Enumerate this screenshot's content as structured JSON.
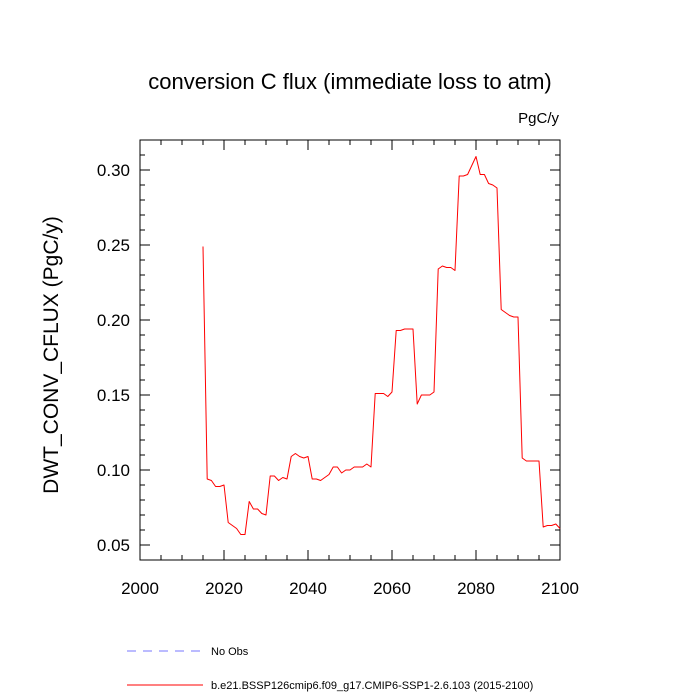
{
  "chart_data": {
    "type": "line",
    "title": "conversion C flux (immediate loss to atm)",
    "units": "PgC/y",
    "ylabel": "DWT_CONV_CFLUX  (PgC/y)",
    "xlabel": "",
    "xlim": [
      2000,
      2100
    ],
    "ylim": [
      0.04,
      0.32
    ],
    "x_ticks": [
      2000,
      2020,
      2040,
      2060,
      2080,
      2100
    ],
    "x_tick_labels": [
      "2000",
      "2020",
      "2040",
      "2060",
      "2080",
      "2100"
    ],
    "y_ticks": [
      0.05,
      0.1,
      0.15,
      0.2,
      0.25,
      0.3
    ],
    "y_tick_labels": [
      "0.05",
      "0.10",
      "0.15",
      "0.20",
      "0.25",
      "0.30"
    ],
    "grid": false,
    "legend_position": "bottom-left",
    "series": [
      {
        "name": "No Obs",
        "color": "#7777ff",
        "dash": true,
        "x": [],
        "y": []
      },
      {
        "name": "b.e21.BSSP126cmip6.f09_g17.CMIP6-SSP1-2.6.103 (2015-2100)",
        "color": "#ff0000",
        "dash": false,
        "x": [
          2015,
          2016,
          2017,
          2018,
          2019,
          2020,
          2021,
          2022,
          2023,
          2024,
          2025,
          2026,
          2027,
          2028,
          2029,
          2030,
          2031,
          2032,
          2033,
          2034,
          2035,
          2036,
          2037,
          2038,
          2039,
          2040,
          2041,
          2042,
          2043,
          2044,
          2045,
          2046,
          2047,
          2048,
          2049,
          2050,
          2051,
          2052,
          2053,
          2054,
          2055,
          2056,
          2057,
          2058,
          2059,
          2060,
          2061,
          2062,
          2063,
          2064,
          2065,
          2066,
          2067,
          2068,
          2069,
          2070,
          2071,
          2072,
          2073,
          2074,
          2075,
          2076,
          2077,
          2078,
          2079,
          2080,
          2081,
          2082,
          2083,
          2084,
          2085,
          2086,
          2087,
          2088,
          2089,
          2090,
          2091,
          2092,
          2093,
          2094,
          2095,
          2096,
          2097,
          2098,
          2099,
          2100
        ],
        "y": [
          0.249,
          0.094,
          0.093,
          0.089,
          0.089,
          0.09,
          0.065,
          0.063,
          0.061,
          0.057,
          0.057,
          0.079,
          0.074,
          0.074,
          0.071,
          0.07,
          0.096,
          0.096,
          0.093,
          0.095,
          0.094,
          0.109,
          0.111,
          0.109,
          0.108,
          0.109,
          0.094,
          0.094,
          0.093,
          0.095,
          0.097,
          0.102,
          0.102,
          0.098,
          0.1,
          0.1,
          0.102,
          0.102,
          0.102,
          0.104,
          0.102,
          0.151,
          0.151,
          0.151,
          0.149,
          0.152,
          0.193,
          0.193,
          0.194,
          0.194,
          0.194,
          0.144,
          0.15,
          0.15,
          0.15,
          0.152,
          0.234,
          0.236,
          0.235,
          0.235,
          0.233,
          0.296,
          0.296,
          0.297,
          0.303,
          0.309,
          0.297,
          0.297,
          0.291,
          0.29,
          0.288,
          0.207,
          0.205,
          0.203,
          0.202,
          0.202,
          0.108,
          0.106,
          0.106,
          0.106,
          0.106,
          0.062,
          0.063,
          0.063,
          0.064,
          0.061
        ]
      }
    ]
  }
}
